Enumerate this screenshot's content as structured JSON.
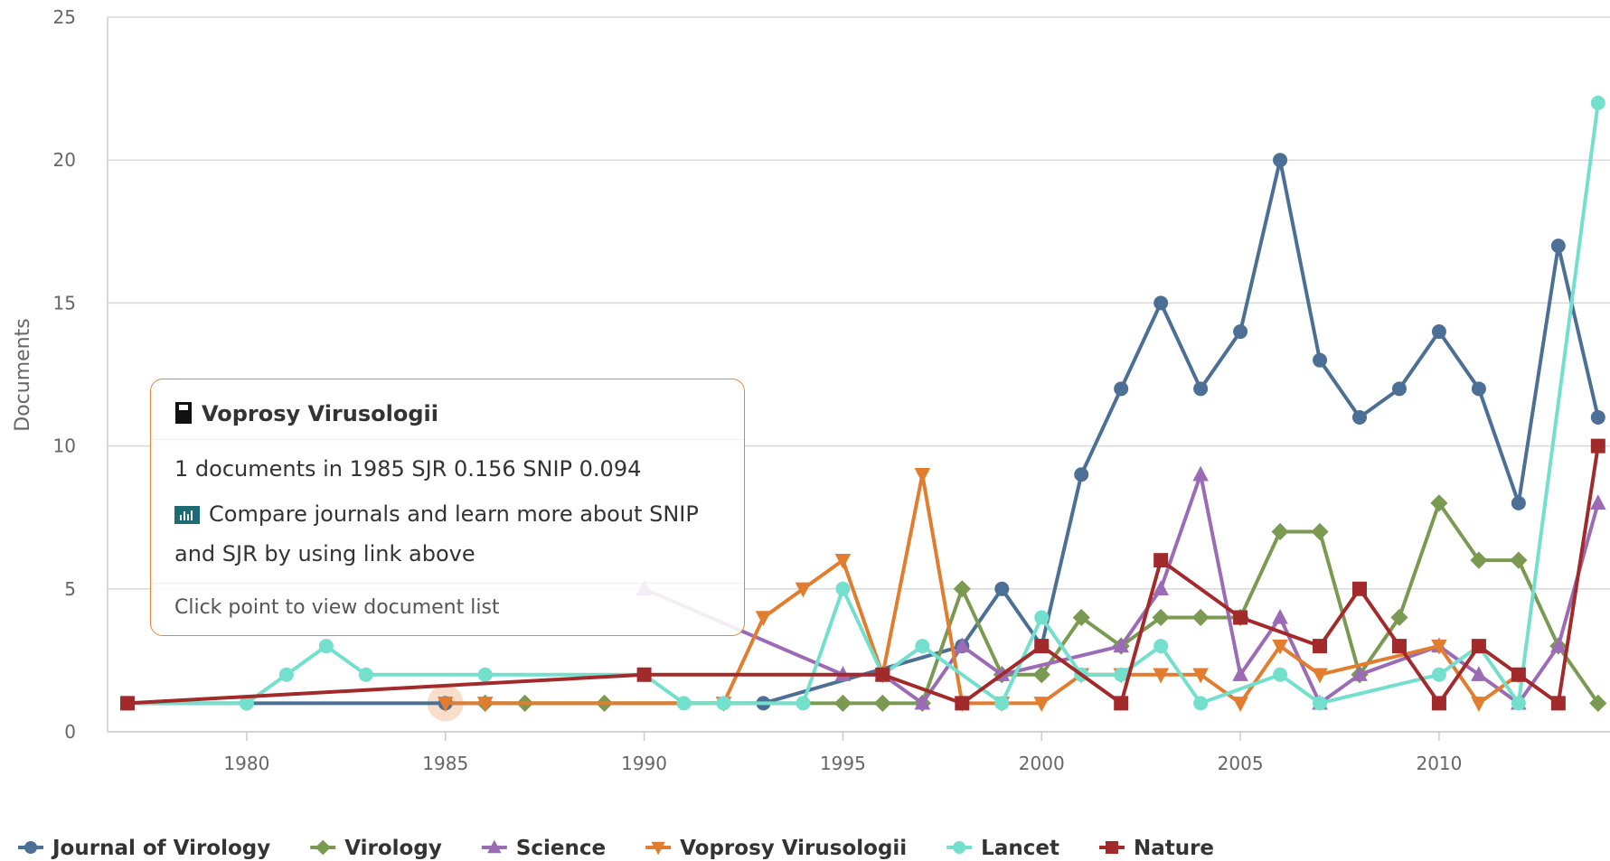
{
  "chart_data": {
    "type": "line",
    "y_label": "Documents",
    "xlim": [
      1976.5,
      2014.3
    ],
    "xticks": [
      1980,
      1985,
      1990,
      1995,
      2000,
      2005,
      2010
    ],
    "ylim": [
      0,
      25
    ],
    "yticks": [
      0,
      5,
      10,
      15,
      20,
      25
    ],
    "grid": true,
    "series": [
      {
        "name": "Journal of Virology",
        "color": "#4c6f96",
        "marker": "circle",
        "x": [
          1977,
          1980,
          1985,
          1993,
          1998,
          1999,
          2000,
          2001,
          2002,
          2003,
          2004,
          2005,
          2006,
          2007,
          2008,
          2009,
          2010,
          2011,
          2012,
          2013,
          2014
        ],
        "values": [
          1,
          1,
          1,
          1,
          3,
          5,
          3,
          9,
          12,
          15,
          12,
          14,
          20,
          13,
          11,
          12,
          14,
          12,
          8,
          17,
          11
        ]
      },
      {
        "name": "Virology",
        "color": "#7a9a52",
        "marker": "diamond",
        "x": [
          1986,
          1987,
          1989,
          1995,
          1996,
          1997,
          1998,
          1999,
          2000,
          2001,
          2002,
          2003,
          2004,
          2005,
          2006,
          2007,
          2008,
          2009,
          2010,
          2011,
          2012,
          2013,
          2014
        ],
        "values": [
          1,
          1,
          1,
          1,
          1,
          1,
          5,
          2,
          2,
          4,
          3,
          4,
          4,
          4,
          7,
          7,
          2,
          4,
          8,
          6,
          6,
          3,
          1
        ]
      },
      {
        "name": "Science",
        "color": "#9b6bb5",
        "marker": "triangle",
        "x": [
          1990,
          1995,
          1996,
          1997,
          1998,
          1999,
          2002,
          2003,
          2004,
          2005,
          2006,
          2007,
          2008,
          2010,
          2011,
          2012,
          2013,
          2014
        ],
        "values": [
          5,
          2,
          2,
          1,
          3,
          2,
          3,
          5,
          9,
          2,
          4,
          1,
          2,
          3,
          2,
          1,
          3,
          8
        ]
      },
      {
        "name": "Voprosy Virusologii",
        "color": "#e27d30",
        "marker": "triangle-down",
        "x": [
          1985,
          1986,
          1992,
          1993,
          1994,
          1995,
          1996,
          1997,
          1998,
          1999,
          2000,
          2001,
          2002,
          2003,
          2004,
          2005,
          2006,
          2007,
          2010,
          2011,
          2012
        ],
        "values": [
          1,
          1,
          1,
          4,
          5,
          6,
          2,
          9,
          1,
          1,
          1,
          2,
          2,
          2,
          2,
          1,
          3,
          2,
          3,
          1,
          2
        ]
      },
      {
        "name": "Lancet",
        "color": "#72e0cc",
        "marker": "circle",
        "x": [
          1977,
          1980,
          1981,
          1982,
          1983,
          1986,
          1990,
          1991,
          1992,
          1994,
          1995,
          1996,
          1997,
          1999,
          2000,
          2001,
          2002,
          2003,
          2004,
          2006,
          2007,
          2010,
          2011,
          2012,
          2014
        ],
        "values": [
          1,
          1,
          2,
          3,
          2,
          2,
          2,
          1,
          1,
          1,
          5,
          2,
          3,
          1,
          4,
          2,
          2,
          3,
          1,
          2,
          1,
          2,
          3,
          1,
          22
        ]
      },
      {
        "name": "Nature",
        "color": "#a32a2a",
        "marker": "square",
        "x": [
          1977,
          1990,
          1996,
          1998,
          2000,
          2002,
          2003,
          2005,
          2007,
          2008,
          2009,
          2010,
          2011,
          2012,
          2013,
          2014
        ],
        "values": [
          1,
          2,
          2,
          1,
          3,
          1,
          6,
          4,
          3,
          5,
          3,
          1,
          3,
          2,
          1,
          10
        ]
      }
    ]
  },
  "tooltip": {
    "title": "Voprosy Virusologii",
    "line1": "1 documents in 1985 SJR 0.156 SNIP 0.094",
    "line2": "Compare journals and learn more about SNIP and SJR by using link above",
    "footer": "Click point to view document list"
  }
}
